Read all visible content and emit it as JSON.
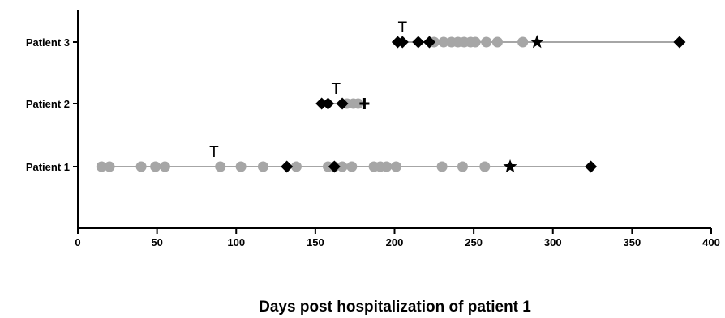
{
  "chart_data": {
    "type": "scatter",
    "title": "",
    "xlabel": "Days post hospitalization of patient 1",
    "ylabel": "",
    "xlim": [
      0,
      400
    ],
    "xticks": [
      0,
      50,
      100,
      150,
      200,
      250,
      300,
      350,
      400
    ],
    "grid": false,
    "colors": {
      "gray_point": "#a6a6a6",
      "black_marker": "#000000",
      "line": "#a6a6a6",
      "axis": "#000000"
    },
    "categories": [
      "Patient 1",
      "Patient 2",
      "Patient 3"
    ],
    "series": [
      {
        "category": "Patient 1",
        "range": [
          15,
          324
        ],
        "gray_points": [
          15,
          20,
          40,
          49,
          55,
          90,
          103,
          117,
          138,
          158,
          162,
          167,
          173,
          187,
          191,
          195,
          201,
          230,
          243,
          257
        ],
        "diamonds": [
          132,
          162,
          324
        ],
        "stars": [
          273
        ],
        "crosses": [],
        "t_labels": [
          86
        ]
      },
      {
        "category": "Patient 2",
        "range": [
          154,
          181
        ],
        "gray_points": [
          170,
          174,
          177
        ],
        "diamonds": [
          154,
          158,
          167
        ],
        "stars": [],
        "crosses": [
          181
        ],
        "t_labels": [
          163
        ]
      },
      {
        "category": "Patient 3",
        "range": [
          202,
          380
        ],
        "gray_points": [
          225,
          231,
          236,
          240,
          244,
          248,
          251,
          258,
          265,
          281
        ],
        "diamonds": [
          202,
          205,
          215,
          222,
          380
        ],
        "stars": [
          290
        ],
        "crosses": [],
        "t_labels": [
          205
        ]
      }
    ],
    "legend": "none"
  }
}
